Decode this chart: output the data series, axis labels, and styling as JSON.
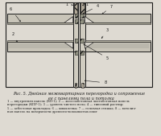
{
  "title": "Рис. 5. Двойная межквартирная перегородка и сопряжение\n   ее с панелями пола и потолка",
  "caption": "1 — внутренняя панель (ВП-1); 2 — железобетонная чистобетонная панель\nперегородки (КПР-1); 3 — уровень чистого пола; 4 — гипсовый раствор;\n5 — асбестовая прокладка; 6 — шпаклевка; 7 — головная стяжка; 8 — вотолич-\nная панель на поверхности древесно-волокнистых плит",
  "bg_color": "#dedad2",
  "line_color": "#1a1a1a",
  "fig_width": 2.0,
  "fig_height": 1.69
}
